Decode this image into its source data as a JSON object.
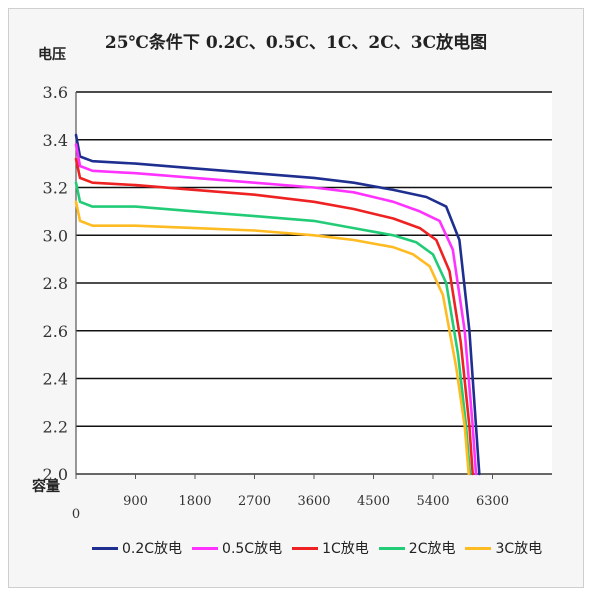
{
  "chart_data": {
    "type": "line",
    "title": "25℃条件下 0.2C、0.5C、1C、2C、3C放电图",
    "ylabel": "电压",
    "xlabel": "容量",
    "xlim": [
      0,
      7200
    ],
    "ylim": [
      2.0,
      3.6
    ],
    "x_ticks": [
      "0",
      "900",
      "1800",
      "2700",
      "3600",
      "4500",
      "5400",
      "6300"
    ],
    "x_tick_values": [
      0,
      900,
      1800,
      2700,
      3600,
      4500,
      5400,
      6300
    ],
    "y_ticks": [
      "2.0",
      "2.2",
      "2.4",
      "2.6",
      "2.8",
      "3.0",
      "3.2",
      "3.4",
      "3.6"
    ],
    "y_tick_values": [
      2.0,
      2.2,
      2.4,
      2.6,
      2.8,
      3.0,
      3.2,
      3.4,
      3.6
    ],
    "grid": "horizontal",
    "legend_position": "bottom",
    "series": [
      {
        "name": "0.2C放电",
        "color": "#1f2f8f",
        "x": [
          0,
          60,
          250,
          900,
          1800,
          2700,
          3600,
          4200,
          4800,
          5300,
          5600,
          5800,
          5950,
          6050,
          6100
        ],
        "y": [
          3.42,
          3.33,
          3.31,
          3.3,
          3.28,
          3.26,
          3.24,
          3.22,
          3.19,
          3.16,
          3.12,
          2.98,
          2.6,
          2.2,
          2.0
        ]
      },
      {
        "name": "0.5C放电",
        "color": "#ff33ff",
        "x": [
          0,
          60,
          250,
          900,
          1800,
          2700,
          3600,
          4200,
          4800,
          5200,
          5500,
          5700,
          5880,
          6000,
          6050
        ],
        "y": [
          3.38,
          3.29,
          3.27,
          3.26,
          3.24,
          3.22,
          3.2,
          3.18,
          3.14,
          3.1,
          3.06,
          2.94,
          2.6,
          2.2,
          2.0
        ]
      },
      {
        "name": "1C放电",
        "color": "#ee2222",
        "x": [
          0,
          60,
          250,
          900,
          1800,
          2700,
          3600,
          4200,
          4800,
          5200,
          5450,
          5650,
          5820,
          5950,
          6000
        ],
        "y": [
          3.32,
          3.24,
          3.22,
          3.21,
          3.19,
          3.17,
          3.14,
          3.11,
          3.07,
          3.03,
          2.98,
          2.85,
          2.55,
          2.2,
          2.0
        ]
      },
      {
        "name": "2C放电",
        "color": "#22cc77",
        "x": [
          0,
          60,
          250,
          900,
          1800,
          2700,
          3600,
          4200,
          4800,
          5150,
          5400,
          5600,
          5780,
          5900,
          5960
        ],
        "y": [
          3.22,
          3.14,
          3.12,
          3.12,
          3.1,
          3.08,
          3.06,
          3.03,
          3.0,
          2.97,
          2.92,
          2.8,
          2.5,
          2.2,
          2.0
        ]
      },
      {
        "name": "3C放电",
        "color": "#ffbb22",
        "x": [
          0,
          60,
          250,
          900,
          1800,
          2700,
          3600,
          4200,
          4800,
          5100,
          5350,
          5550,
          5750,
          5880,
          5940
        ],
        "y": [
          3.14,
          3.06,
          3.04,
          3.04,
          3.03,
          3.02,
          3.0,
          2.98,
          2.95,
          2.92,
          2.87,
          2.75,
          2.45,
          2.2,
          2.0
        ]
      }
    ]
  }
}
